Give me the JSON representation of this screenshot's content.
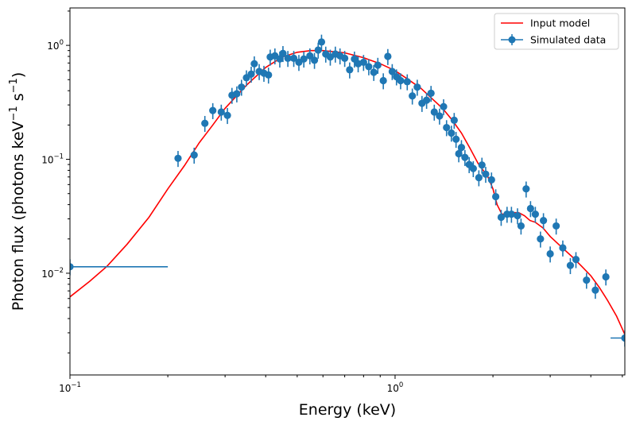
{
  "chart_data": {
    "type": "scatter",
    "title": "",
    "xlabel": "Energy (keV)",
    "ylabel_parts": [
      "Photon flux (photons keV",
      "−1",
      " s",
      "−1",
      ")"
    ],
    "xscale": "log",
    "yscale": "log",
    "xlim": [
      0.1,
      5.09
    ],
    "ylim": [
      0.00128,
      2.13
    ],
    "grid": false,
    "legend_position": "top-right",
    "x_ticks": [
      {
        "value": 0.1,
        "base": "10",
        "exp": "−1"
      },
      {
        "value": 1,
        "base": "10",
        "exp": "0"
      }
    ],
    "y_ticks": [
      {
        "value": 0.01,
        "base": "10",
        "exp": "−2"
      },
      {
        "value": 0.1,
        "base": "10",
        "exp": "−1"
      },
      {
        "value": 1,
        "base": "10",
        "exp": "0"
      }
    ],
    "series": [
      {
        "name": "Input model",
        "kind": "line",
        "color": "#ff0000",
        "x": [
          0.1,
          0.115,
          0.13,
          0.15,
          0.175,
          0.2,
          0.225,
          0.25,
          0.275,
          0.3,
          0.35,
          0.4,
          0.45,
          0.5,
          0.55,
          0.6,
          0.7,
          0.8,
          0.9,
          1.0,
          1.1,
          1.2,
          1.3,
          1.4,
          1.5,
          1.6,
          1.7,
          1.8,
          1.93,
          2.0,
          2.06,
          2.13,
          2.2,
          2.3,
          2.4,
          2.5,
          2.6,
          2.7,
          2.85,
          3.0,
          3.25,
          3.5,
          3.75,
          4.0,
          4.25,
          4.5,
          4.8,
          5.09
        ],
        "y": [
          0.0062,
          0.0085,
          0.0115,
          0.018,
          0.031,
          0.055,
          0.088,
          0.14,
          0.2,
          0.28,
          0.45,
          0.64,
          0.79,
          0.87,
          0.9,
          0.9,
          0.86,
          0.78,
          0.69,
          0.6,
          0.5,
          0.42,
          0.34,
          0.28,
          0.22,
          0.17,
          0.125,
          0.092,
          0.07,
          0.055,
          0.04,
          0.033,
          0.033,
          0.034,
          0.034,
          0.032,
          0.029,
          0.028,
          0.025,
          0.021,
          0.017,
          0.014,
          0.0115,
          0.0095,
          0.0075,
          0.0058,
          0.0042,
          0.0029
        ]
      },
      {
        "name": "Simulated data",
        "kind": "errorbar",
        "color": "#1f77b4",
        "rel_yerr": 0.16,
        "x": [
          0.1,
          0.215,
          0.241,
          0.26,
          0.275,
          0.292,
          0.305,
          0.315,
          0.326,
          0.337,
          0.349,
          0.361,
          0.369,
          0.382,
          0.395,
          0.408,
          0.413,
          0.427,
          0.442,
          0.452,
          0.468,
          0.488,
          0.506,
          0.524,
          0.547,
          0.565,
          0.58,
          0.594,
          0.612,
          0.632,
          0.655,
          0.677,
          0.7,
          0.725,
          0.75,
          0.77,
          0.8,
          0.83,
          0.86,
          0.885,
          0.92,
          0.95,
          0.98,
          1.01,
          1.04,
          1.09,
          1.13,
          1.17,
          1.21,
          1.25,
          1.29,
          1.32,
          1.37,
          1.41,
          1.44,
          1.49,
          1.52,
          1.54,
          1.57,
          1.6,
          1.64,
          1.69,
          1.74,
          1.81,
          1.85,
          1.9,
          1.98,
          2.04,
          2.12,
          2.21,
          2.28,
          2.38,
          2.44,
          2.53,
          2.61,
          2.7,
          2.8,
          2.86,
          3.0,
          3.13,
          3.28,
          3.46,
          3.6,
          3.88,
          4.13,
          4.45,
          5.09
        ],
        "y": [
          0.0114,
          0.102,
          0.109,
          0.207,
          0.268,
          0.26,
          0.243,
          0.365,
          0.376,
          0.43,
          0.52,
          0.56,
          0.69,
          0.59,
          0.57,
          0.55,
          0.79,
          0.81,
          0.76,
          0.85,
          0.77,
          0.77,
          0.71,
          0.76,
          0.81,
          0.74,
          0.91,
          1.07,
          0.84,
          0.79,
          0.84,
          0.81,
          0.77,
          0.61,
          0.76,
          0.69,
          0.71,
          0.65,
          0.58,
          0.67,
          0.49,
          0.8,
          0.59,
          0.53,
          0.49,
          0.48,
          0.36,
          0.43,
          0.31,
          0.33,
          0.38,
          0.26,
          0.24,
          0.29,
          0.19,
          0.17,
          0.22,
          0.15,
          0.112,
          0.127,
          0.104,
          0.09,
          0.083,
          0.069,
          0.089,
          0.074,
          0.066,
          0.047,
          0.031,
          0.033,
          0.033,
          0.032,
          0.026,
          0.055,
          0.037,
          0.033,
          0.02,
          0.029,
          0.0148,
          0.026,
          0.0167,
          0.0117,
          0.0132,
          0.0087,
          0.0071,
          0.0093,
          0.0027
        ],
        "x_lo": {
          "0": 0.1,
          "86": 4.6
        },
        "x_hi": {
          "0": 0.2,
          "86": 5.09
        }
      }
    ]
  }
}
